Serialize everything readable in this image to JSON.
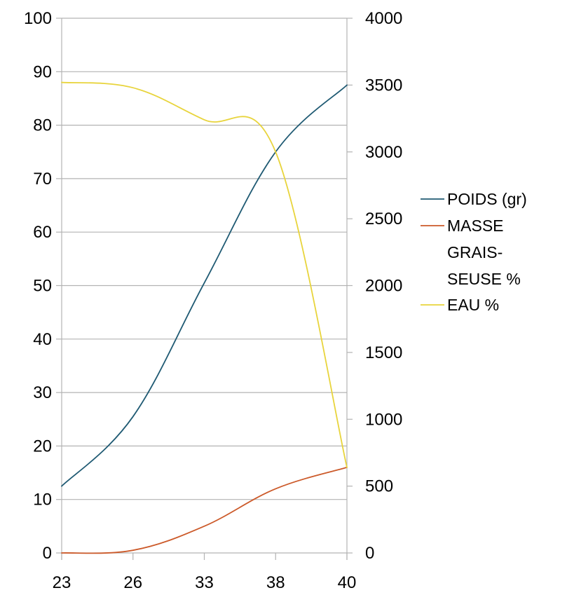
{
  "chart_data": {
    "type": "line",
    "title": "",
    "xlabel": "",
    "ylabel": "",
    "categories": [
      "23",
      "26",
      "33",
      "38",
      "40"
    ],
    "y_left": {
      "ticks": [
        "0",
        "10",
        "20",
        "30",
        "40",
        "50",
        "60",
        "70",
        "80",
        "90",
        "100"
      ],
      "ylim": [
        0,
        100
      ]
    },
    "y_right": {
      "ticks": [
        "0",
        "500",
        "1000",
        "1500",
        "2000",
        "2500",
        "3000",
        "3500",
        "4000"
      ],
      "ylim": [
        0,
        4000
      ]
    },
    "grid": true,
    "legend_position": "right",
    "series": [
      {
        "name": "POIDS (gr)",
        "axis": "right",
        "color": "#1f5a73",
        "values": [
          500,
          1020,
          2020,
          3000,
          3500
        ]
      },
      {
        "name": "MASSE GRAIS-SEUSE %",
        "axis": "left",
        "color": "#cc5a2a",
        "values": [
          0,
          0.5,
          5,
          12,
          16
        ]
      },
      {
        "name": "EAU %",
        "axis": "left",
        "color": "#e8d43c",
        "values": [
          88,
          87,
          81,
          75,
          16
        ]
      }
    ],
    "legend_lines": [
      [
        "POIDS (gr)"
      ],
      [
        "MASSE",
        "GRAIS-",
        "SEUSE %"
      ],
      [
        "EAU %"
      ]
    ]
  }
}
